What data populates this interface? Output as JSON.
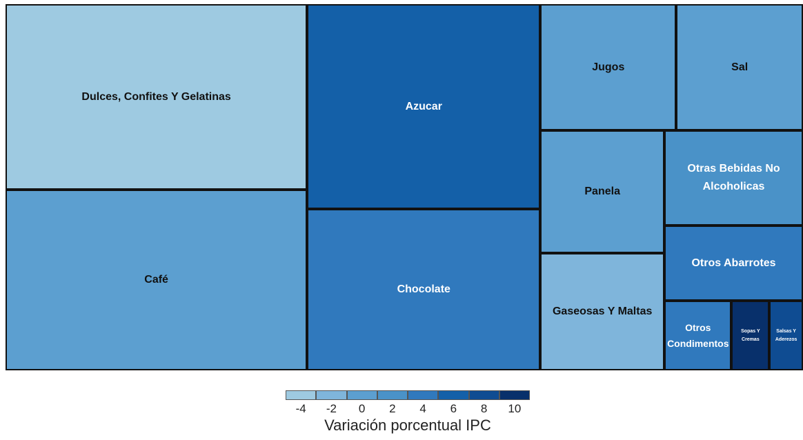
{
  "chart_data": {
    "type": "treemap",
    "categories": [
      "Dulces, Confites Y Gelatinas",
      "Café",
      "Azucar",
      "Chocolate",
      "Jugos",
      "Sal",
      "Panela",
      "Gaseosas Y Maltas",
      "Otras Bebidas No Alcoholicas",
      "Otros Abarrotes",
      "Otros Condimentos",
      "Sopas Y Cremas",
      "Salsas Y Aderezos"
    ],
    "values": [
      19.2,
      18.7,
      16.4,
      12.9,
      5.9,
      5.5,
      5.2,
      5.0,
      4.5,
      3.6,
      1.6,
      0.9,
      0.8
    ],
    "color_values": [
      -3.8,
      0.9,
      6.5,
      3.6,
      0.7,
      0.8,
      0.4,
      -1.5,
      2.8,
      4.4,
      3.1,
      10.2,
      8.3
    ],
    "legend": {
      "title": "Variación porcentual IPC",
      "ticks": [
        -4,
        -2,
        0,
        2,
        4,
        6,
        8,
        10
      ],
      "colors": [
        "#9ecae1",
        "#7fb5db",
        "#5c9fd0",
        "#4a92c8",
        "#3079bd",
        "#1460a8",
        "#0f4c92",
        "#08306b"
      ]
    }
  }
}
